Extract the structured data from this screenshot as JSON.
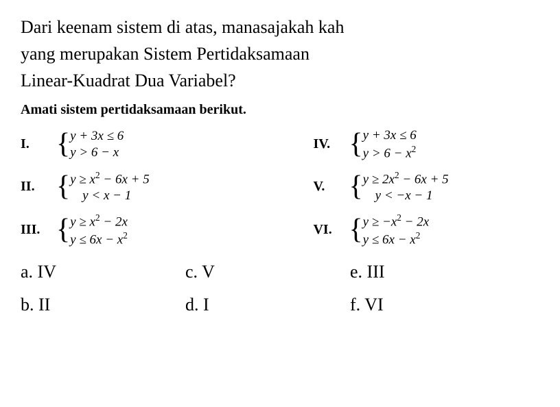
{
  "question": {
    "line1": "Dari keenam sistem di atas, manasajakah kah",
    "line2": "yang merupakan Sistem Pertidaksamaan",
    "line3": "Linear-Kuadrat Dua Variabel?"
  },
  "instruction": "Amati sistem pertidaksamaan berikut.",
  "systems": [
    {
      "label": "I.",
      "eq1": "y + 3x ≤ 6",
      "eq2": "y > 6 − x",
      "indent2": false
    },
    {
      "label": "IV.",
      "eq1": "y + 3x ≤ 6",
      "eq2": "y > 6 − x²",
      "indent2": false
    },
    {
      "label": "II.",
      "eq1": "y ≥ x² − 6x + 5",
      "eq2": "y < x − 1",
      "indent2": true
    },
    {
      "label": "V.",
      "eq1": "y ≥ 2x² − 6x + 5",
      "eq2": "y < −x − 1",
      "indent2": true
    },
    {
      "label": "III.",
      "eq1": "y ≥ x² − 2x",
      "eq2": "y ≤ 6x − x²",
      "indent2": false
    },
    {
      "label": "VI.",
      "eq1": "y ≥ −x² − 2x",
      "eq2": "y ≤ 6x − x²",
      "indent2": false
    }
  ],
  "options": [
    {
      "label": "a. IV"
    },
    {
      "label": "c. V"
    },
    {
      "label": "e. III"
    },
    {
      "label": "b. II"
    },
    {
      "label": "d. I"
    },
    {
      "label": "f. VI"
    }
  ],
  "styling": {
    "background_color": "#ffffff",
    "text_color": "#000000",
    "question_fontsize": 26,
    "instruction_fontsize": 20,
    "system_label_fontsize": 20,
    "equation_fontsize": 19,
    "option_fontsize": 26,
    "font_family": "Times New Roman"
  }
}
